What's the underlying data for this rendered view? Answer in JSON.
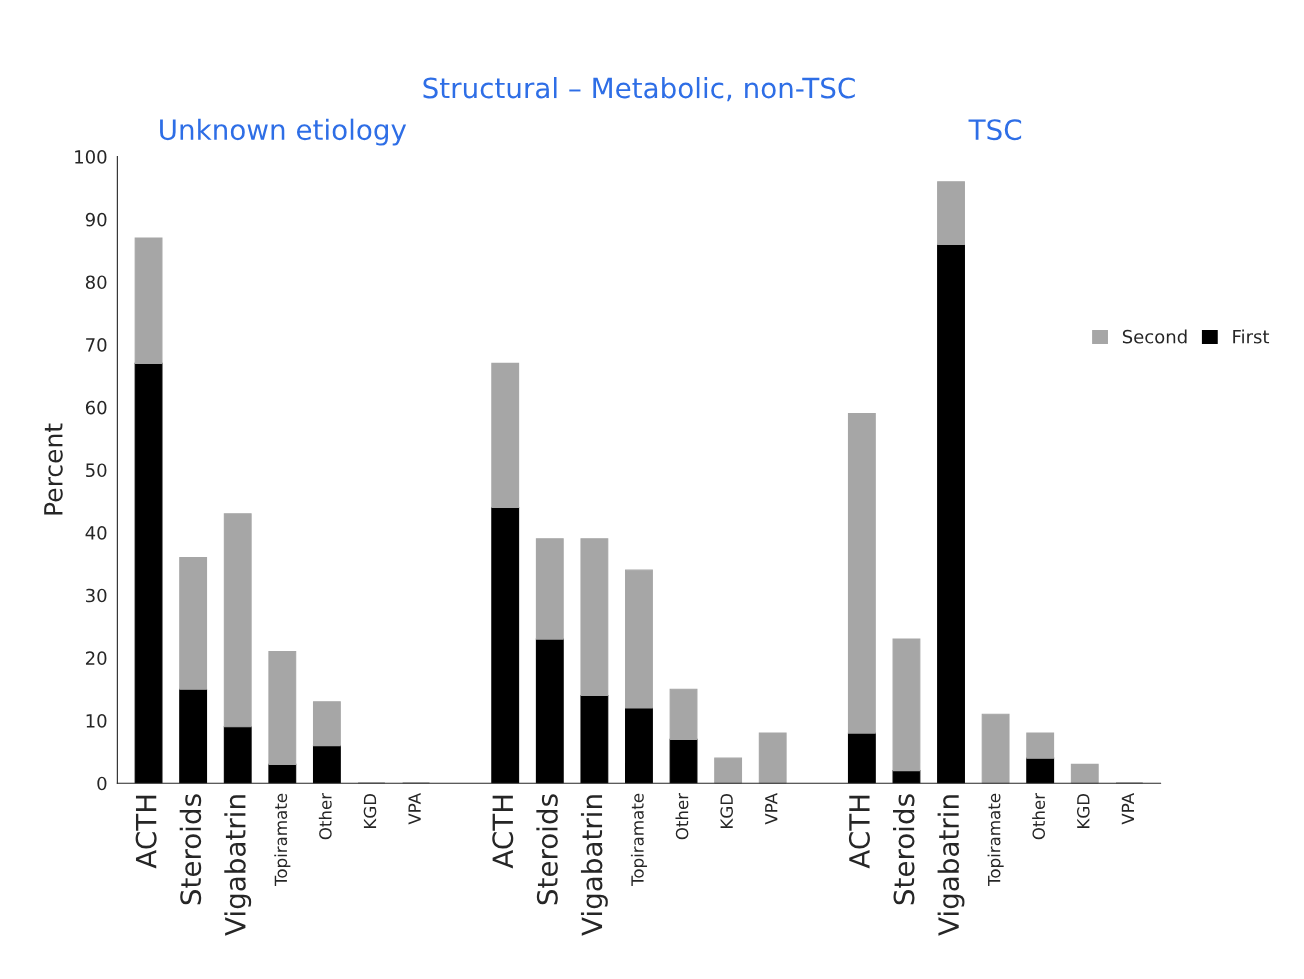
{
  "chart_data": {
    "type": "bar",
    "stacked": true,
    "ylabel": "Percent",
    "categories": [
      "ACTH",
      "Steroids",
      "Vigabatrin",
      "Topiramate",
      "Other",
      "KGD",
      "VPA",
      null,
      "ACTH",
      "Steroids",
      "Vigabatrin",
      "Topiramate",
      "Other",
      "KGD",
      "VPA",
      null,
      "ACTH",
      "Steroids",
      "Vigabatrin",
      "Topiramate",
      "Other",
      "KGD",
      "VPA"
    ],
    "series": [
      {
        "name": "First",
        "color": "#000000",
        "values": [
          67,
          15,
          9,
          3,
          6,
          0,
          0,
          null,
          44,
          23,
          14,
          12,
          7,
          0,
          0,
          null,
          8,
          2,
          86,
          0,
          4,
          0,
          0
        ]
      },
      {
        "name": "Second",
        "color": "#a6a6a6",
        "values": [
          20,
          21,
          34,
          18,
          7,
          0,
          0,
          null,
          23,
          16,
          25,
          22,
          8,
          4,
          8,
          null,
          51,
          21,
          10,
          11,
          4,
          3,
          0
        ]
      }
    ],
    "ylim": [
      0,
      100
    ],
    "yticks": [
      0,
      10,
      20,
      30,
      40,
      50,
      60,
      70,
      80,
      90,
      100
    ],
    "grid": false,
    "legend": "top right",
    "annotations": [
      "Unknown etiology",
      "Structural – Metabolic, non-TSC",
      "TSC"
    ]
  }
}
